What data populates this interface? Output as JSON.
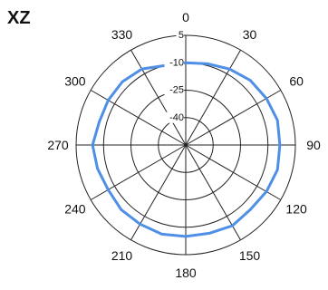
{
  "chart_data": {
    "type": "line",
    "polar": true,
    "title": "XZ",
    "radial_axis": {
      "ticks": [
        5,
        -10,
        -25,
        -40
      ],
      "tick_labels": [
        "5",
        "-10",
        "-25",
        "-40"
      ],
      "range": [
        -55,
        5
      ]
    },
    "angular_axis": {
      "direction": "clockwise",
      "zero_at": "top",
      "ticks": [
        0,
        30,
        60,
        90,
        120,
        150,
        180,
        210,
        240,
        270,
        300,
        330
      ],
      "tick_labels": [
        "0",
        "30",
        "60",
        "90",
        "120",
        "150",
        "180",
        "210",
        "240",
        "270",
        "300",
        "330"
      ]
    },
    "grid": true,
    "colors": {
      "series": "#4f8fe6",
      "grid": "#222222"
    },
    "series": [
      {
        "angles": [
          0,
          15,
          30,
          45,
          60,
          75,
          90,
          105,
          120,
          135,
          150,
          165,
          180,
          195,
          210,
          225,
          240,
          255,
          270,
          285,
          300,
          315,
          330,
          345,
          360
        ],
        "values": [
          -10,
          -9,
          -7,
          -5,
          -4,
          -3,
          -3.5,
          -3,
          -4,
          -5,
          -4,
          -5,
          -5,
          -4.5,
          -5,
          -5,
          -6,
          -5,
          -4,
          -6,
          -6,
          -6,
          -7,
          -10,
          -10
        ]
      }
    ]
  }
}
